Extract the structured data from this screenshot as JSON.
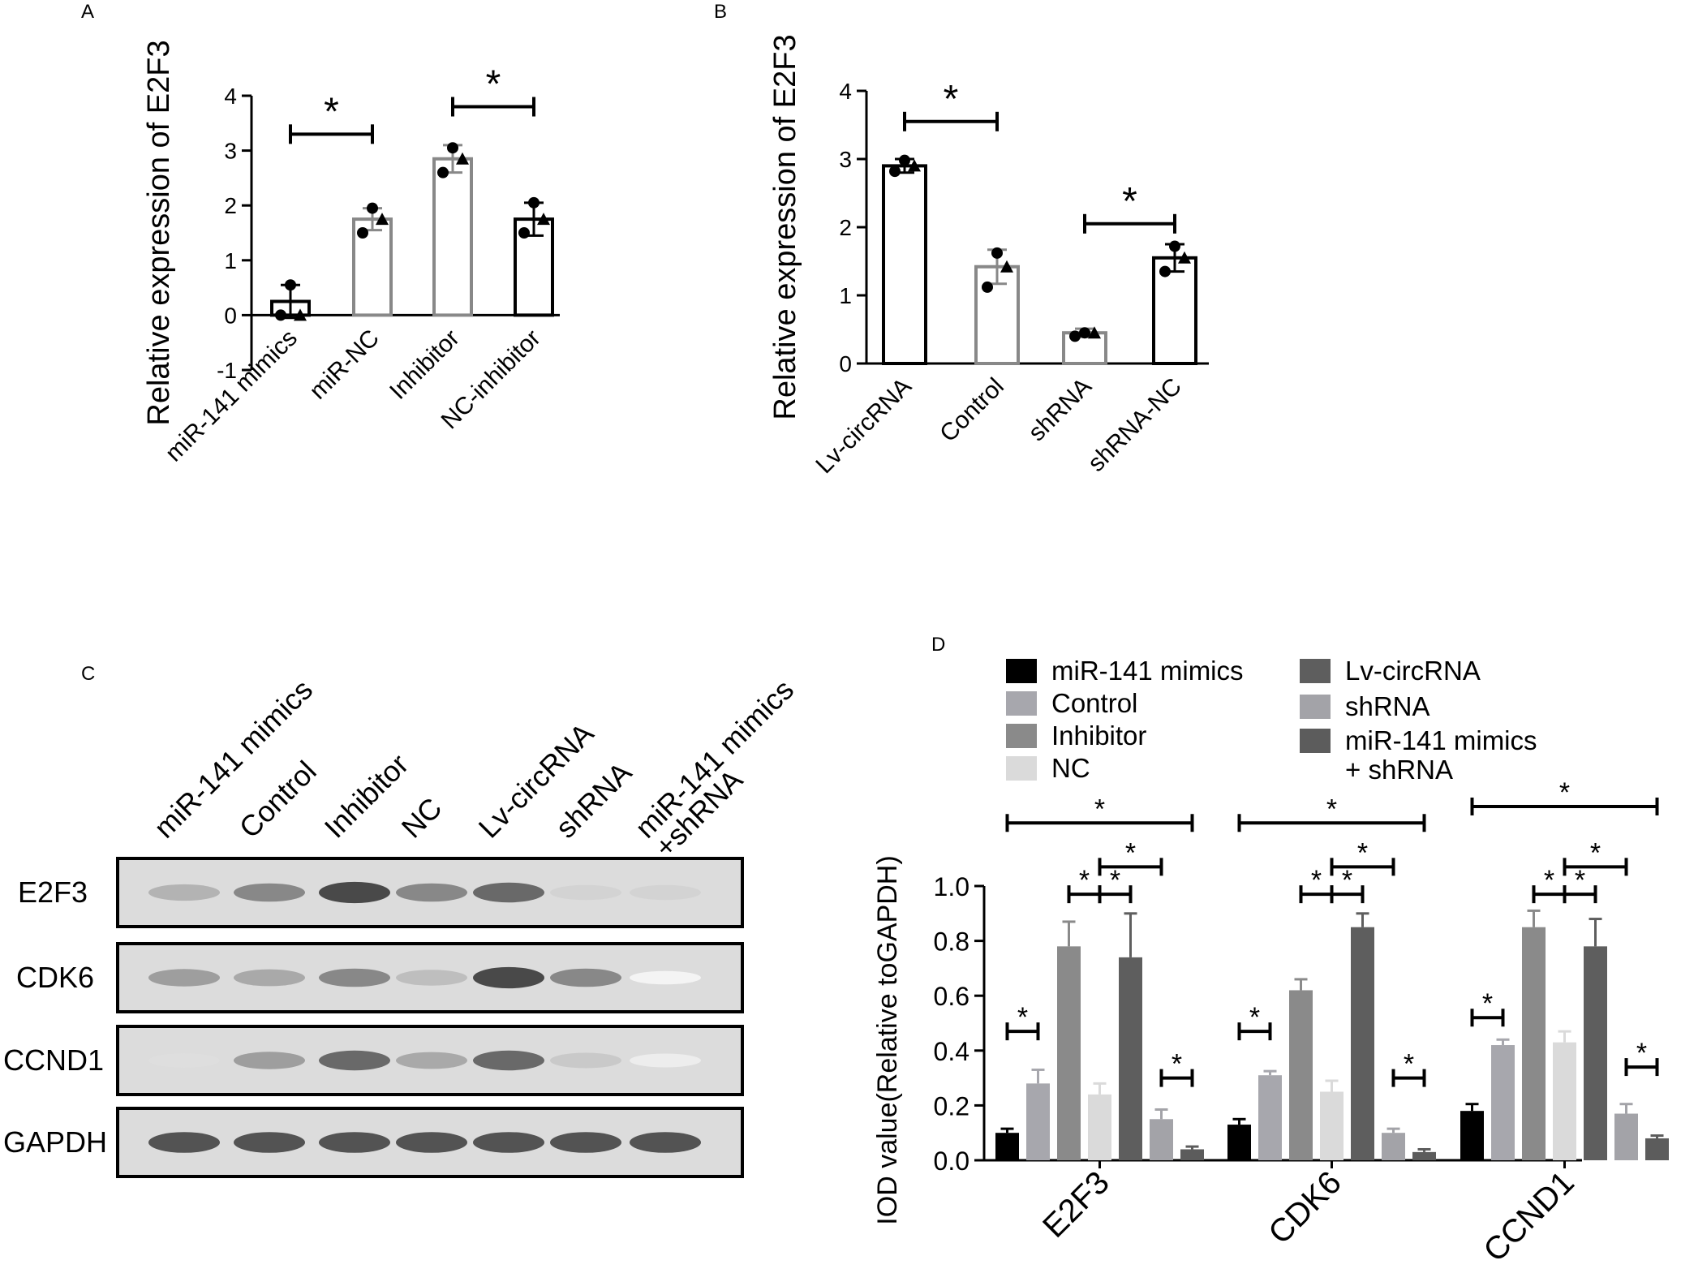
{
  "panels": {
    "A": {
      "letter": "A",
      "chart_data": {
        "type": "bar",
        "ylabel": "Relative expression of E2F3",
        "ylim": [
          -1,
          4
        ],
        "yticks": [
          "-1",
          "0",
          "1",
          "2",
          "3",
          "4"
        ],
        "categories": [
          "miR-141 mimics",
          "miR-NC",
          "Inhibitor",
          "NC-inhibitor"
        ],
        "values": [
          0.25,
          1.75,
          2.85,
          1.75
        ],
        "errors": [
          0.3,
          0.2,
          0.25,
          0.3
        ],
        "bar_colors": [
          "#000000",
          "#888888",
          "#888888",
          "#000000"
        ],
        "points": [
          [
            0.55,
            0.0,
            0.0
          ],
          [
            1.95,
            1.5,
            1.75
          ],
          [
            3.05,
            2.6,
            2.85
          ],
          [
            2.05,
            1.5,
            1.75
          ]
        ],
        "significance": [
          {
            "from": 0,
            "to": 1,
            "label": "*",
            "y": 3.3
          },
          {
            "from": 2,
            "to": 3,
            "label": "*",
            "y": 3.8
          }
        ]
      }
    },
    "B": {
      "letter": "B",
      "chart_data": {
        "type": "bar",
        "ylabel": "Relative expression of E2F3",
        "ylim": [
          0,
          4
        ],
        "yticks": [
          "0",
          "1",
          "2",
          "3",
          "4"
        ],
        "categories": [
          "Lv-circRNA",
          "Control",
          "shRNA",
          "shRNA-NC"
        ],
        "values": [
          2.9,
          1.42,
          0.45,
          1.55
        ],
        "errors": [
          0.1,
          0.25,
          0.06,
          0.2
        ],
        "bar_colors": [
          "#000000",
          "#888888",
          "#888888",
          "#000000"
        ],
        "points": [
          [
            2.98,
            2.82,
            2.9
          ],
          [
            1.62,
            1.12,
            1.42
          ],
          [
            0.45,
            0.4,
            0.45
          ],
          [
            1.72,
            1.35,
            1.55
          ]
        ],
        "significance": [
          {
            "from": 0,
            "to": 1,
            "label": "*",
            "y": 3.55
          },
          {
            "from": 2,
            "to": 3,
            "label": "*",
            "y": 2.05
          }
        ]
      }
    },
    "C": {
      "letter": "C",
      "lanes": [
        "miR-141 mimics",
        "Control",
        "Inhibitor",
        "NC",
        "Lv-circRNA",
        "shRNA",
        "miR-141 mimics\n+shRNA"
      ],
      "rows": [
        {
          "label": "E2F3",
          "intensity": [
            0.35,
            0.55,
            0.85,
            0.55,
            0.7,
            0.2,
            0.2
          ]
        },
        {
          "label": "CDK6",
          "intensity": [
            0.45,
            0.4,
            0.55,
            0.3,
            0.85,
            0.55,
            0.05
          ]
        },
        {
          "label": "CCND1",
          "intensity": [
            0.15,
            0.45,
            0.7,
            0.4,
            0.7,
            0.25,
            0.08
          ]
        },
        {
          "label": "GAPDH",
          "intensity": [
            0.8,
            0.8,
            0.8,
            0.8,
            0.8,
            0.8,
            0.8
          ]
        }
      ]
    },
    "D": {
      "letter": "D",
      "chart_data": {
        "type": "bar",
        "ylabel": "IOD value(Relative toGAPDH)",
        "ylim": [
          0,
          1.0
        ],
        "yticks": [
          "0.0",
          "0.2",
          "0.4",
          "0.6",
          "0.8",
          "1.0"
        ],
        "categories": [
          "E2F3",
          "CDK6",
          "CCND1"
        ],
        "series": [
          {
            "name": "miR-141 mimics",
            "color": "#000000",
            "values": [
              0.1,
              0.13,
              0.18
            ],
            "errors": [
              0.015,
              0.02,
              0.025
            ]
          },
          {
            "name": "Control",
            "color": "#a7a7ad",
            "values": [
              0.28,
              0.31,
              0.42
            ],
            "errors": [
              0.05,
              0.015,
              0.02
            ]
          },
          {
            "name": "Inhibitor",
            "color": "#8a8a8a",
            "values": [
              0.78,
              0.62,
              0.85
            ],
            "errors": [
              0.09,
              0.04,
              0.06
            ]
          },
          {
            "name": "NC",
            "color": "#dadada",
            "values": [
              0.24,
              0.25,
              0.43
            ],
            "errors": [
              0.04,
              0.04,
              0.04
            ]
          },
          {
            "name": "Lv-circRNA",
            "color": "#5e5e5e",
            "values": [
              0.74,
              0.85,
              0.78
            ],
            "errors": [
              0.16,
              0.05,
              0.1
            ]
          },
          {
            "name": "shRNA",
            "color": "#a3a3a8",
            "values": [
              0.15,
              0.1,
              0.17
            ],
            "errors": [
              0.035,
              0.015,
              0.035
            ]
          },
          {
            "name": "miR-141 mimics\n+ shRNA",
            "color": "#5c5c5c",
            "values": [
              0.04,
              0.03,
              0.08
            ],
            "errors": [
              0.01,
              0.01,
              0.01
            ]
          }
        ],
        "significance": [
          {
            "group": 0,
            "from": 0,
            "to": 6,
            "label": "*",
            "y": 1.23
          },
          {
            "group": 0,
            "from": 2,
            "to": 3,
            "label": "*",
            "y": 0.97
          },
          {
            "group": 0,
            "from": 3,
            "to": 4,
            "label": "*",
            "y": 0.97
          },
          {
            "group": 0,
            "from": 3,
            "to": 5,
            "label": "*",
            "y": 1.07
          },
          {
            "group": 0,
            "from": 0,
            "to": 1,
            "label": "*",
            "y": 0.47
          },
          {
            "group": 0,
            "from": 5,
            "to": 6,
            "label": "*",
            "y": 0.3
          },
          {
            "group": 1,
            "from": 0,
            "to": 6,
            "label": "*",
            "y": 1.23
          },
          {
            "group": 1,
            "from": 2,
            "to": 3,
            "label": "*",
            "y": 0.97
          },
          {
            "group": 1,
            "from": 3,
            "to": 4,
            "label": "*",
            "y": 0.97
          },
          {
            "group": 1,
            "from": 3,
            "to": 5,
            "label": "*",
            "y": 1.07
          },
          {
            "group": 1,
            "from": 0,
            "to": 1,
            "label": "*",
            "y": 0.47
          },
          {
            "group": 1,
            "from": 5,
            "to": 6,
            "label": "*",
            "y": 0.3
          },
          {
            "group": 2,
            "from": 0,
            "to": 6,
            "label": "*",
            "y": 1.29
          },
          {
            "group": 2,
            "from": 2,
            "to": 3,
            "label": "*",
            "y": 0.97
          },
          {
            "group": 2,
            "from": 3,
            "to": 4,
            "label": "*",
            "y": 0.97
          },
          {
            "group": 2,
            "from": 3,
            "to": 5,
            "label": "*",
            "y": 1.07
          },
          {
            "group": 2,
            "from": 0,
            "to": 1,
            "label": "*",
            "y": 0.52
          },
          {
            "group": 2,
            "from": 5,
            "to": 6,
            "label": "*",
            "y": 0.34
          }
        ]
      }
    }
  }
}
